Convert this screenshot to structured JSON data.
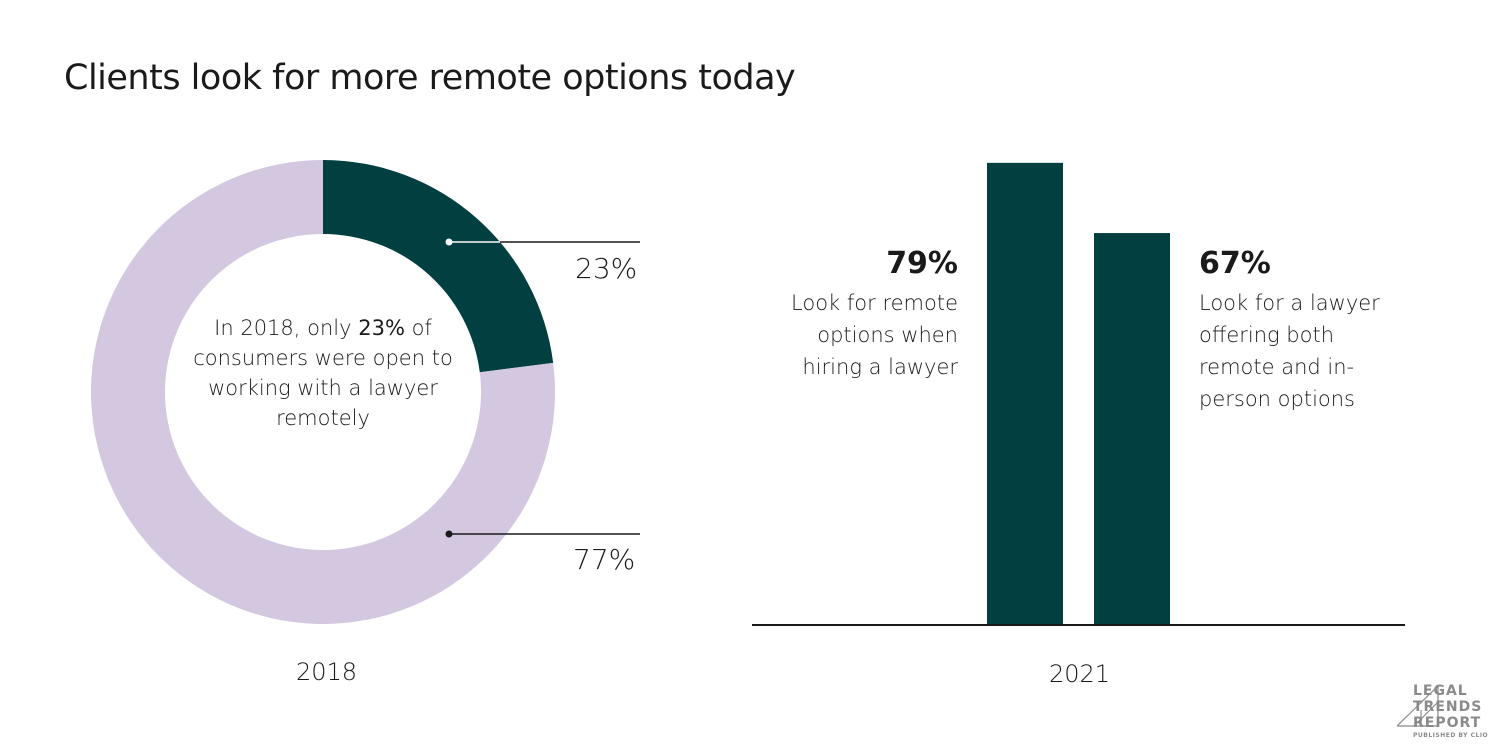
{
  "title": "Clients look for more remote options today",
  "colors": {
    "dark_green": "#023f40",
    "lavender": "#d4c7e0",
    "axis": "#1a1a1a",
    "logo_gray": "#8a8a8a"
  },
  "chart_data": [
    {
      "type": "pie",
      "subtype": "donut",
      "xlabel": "2018",
      "slices": [
        {
          "label": "23%",
          "value": 23,
          "color": "#023f40"
        },
        {
          "label": "77%",
          "value": 77,
          "color": "#d4c7e0"
        }
      ],
      "center_text": {
        "pre": "In 2018, only ",
        "bold": "23%",
        "post": " of consumers were open to working with a lawyer remotely"
      }
    },
    {
      "type": "bar",
      "xlabel": "2021",
      "ylim": [
        0,
        100
      ],
      "grid": false,
      "categories": [
        "Look for remote options when hiring a lawyer",
        "Look for a lawyer offering both remote and in-person options"
      ],
      "values": [
        79,
        67
      ],
      "labels": [
        "79%",
        "67%"
      ],
      "color": "#023f40"
    }
  ],
  "logo": {
    "line1": "LEGAL",
    "line2": "TRENDS",
    "line3": "REPORT",
    "sub": "PUBLISHED BY CLIO"
  }
}
